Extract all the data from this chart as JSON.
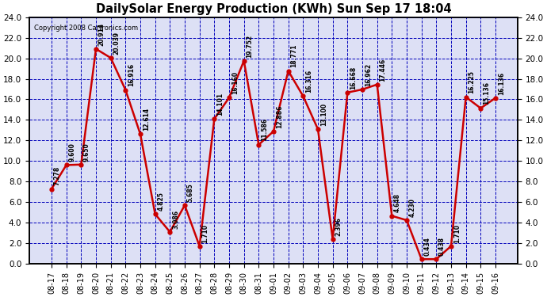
{
  "title": "DailySolar Energy Production (KWh) Sun Sep 17 18:04",
  "copyright": "Copyright 2008 Cartronics.com",
  "x_labels": [
    "08-17",
    "08-18",
    "08-19",
    "08-20",
    "08-21",
    "08-22",
    "08-23",
    "08-24",
    "08-25",
    "08-26",
    "08-27",
    "08-28",
    "08-29",
    "08-30",
    "08-31",
    "09-01",
    "09-02",
    "09-03",
    "09-04",
    "09-05",
    "09-06",
    "09-07",
    "09-08",
    "09-09",
    "09-10",
    "09-11",
    "09-12",
    "09-13",
    "09-14",
    "09-15",
    "09-16"
  ],
  "values": [
    7.278,
    9.6,
    9.65,
    20.914,
    20.039,
    16.916,
    12.614,
    4.825,
    3.086,
    5.685,
    1.71,
    14.101,
    16.16,
    19.752,
    11.586,
    12.886,
    18.771,
    16.316,
    13.1,
    2.396,
    16.668,
    16.962,
    17.446,
    4.648,
    4.23,
    0.434,
    0.438,
    1.71,
    16.225,
    15.136,
    16.136
  ],
  "line_color": "#cc0000",
  "marker_color": "#cc0000",
  "bg_color": "#ffffff",
  "plot_bg_color": "#dde0f5",
  "grid_color": "#0000bb",
  "title_color": "#000000",
  "label_color": "#000000",
  "ylim": [
    0.0,
    24.0
  ],
  "yticks": [
    0.0,
    2.0,
    4.0,
    6.0,
    8.0,
    10.0,
    12.0,
    14.0,
    16.0,
    18.0,
    20.0,
    22.0,
    24.0
  ]
}
